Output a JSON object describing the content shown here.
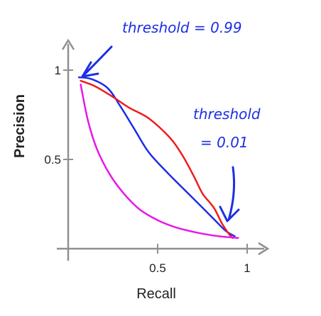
{
  "chart_data": {
    "type": "line",
    "xlabel": "Recall",
    "ylabel": "Precision",
    "xlim": [
      0,
      1
    ],
    "ylim": [
      0,
      1
    ],
    "x_ticks": [
      {
        "value": 0.5,
        "label": "0.5"
      },
      {
        "value": 1,
        "label": "1"
      }
    ],
    "y_ticks": [
      {
        "value": 0.5,
        "label": "0.5"
      },
      {
        "value": 1,
        "label": "1"
      }
    ],
    "grid": false,
    "legend": "none",
    "series": [
      {
        "color": "#1c2ee6",
        "x": [
          0.06,
          0.13,
          0.22,
          0.29,
          0.37,
          0.45,
          0.56,
          0.67,
          0.75,
          0.82,
          0.88,
          0.93
        ],
        "y": [
          0.96,
          0.95,
          0.9,
          0.8,
          0.67,
          0.54,
          0.42,
          0.31,
          0.23,
          0.16,
          0.1,
          0.07
        ]
      },
      {
        "color": "#ee1c1c",
        "x": [
          0.07,
          0.15,
          0.25,
          0.34,
          0.45,
          0.57,
          0.64,
          0.7,
          0.75,
          0.79,
          0.82,
          0.86,
          0.9,
          0.92
        ],
        "y": [
          0.94,
          0.91,
          0.85,
          0.79,
          0.73,
          0.62,
          0.52,
          0.41,
          0.31,
          0.26,
          0.22,
          0.14,
          0.08,
          0.06
        ]
      },
      {
        "color": "#e818e8",
        "x": [
          0.07,
          0.11,
          0.16,
          0.23,
          0.31,
          0.4,
          0.5,
          0.6,
          0.72,
          0.84,
          0.95
        ],
        "y": [
          0.92,
          0.72,
          0.56,
          0.42,
          0.31,
          0.22,
          0.16,
          0.12,
          0.09,
          0.07,
          0.06
        ]
      }
    ],
    "annotations": [
      {
        "text": "threshold = 0.99",
        "color": "#1c2ee6"
      },
      {
        "text": "threshold",
        "color": "#1c2ee6"
      },
      {
        "text": "= 0.01",
        "color": "#1c2ee6"
      }
    ]
  }
}
